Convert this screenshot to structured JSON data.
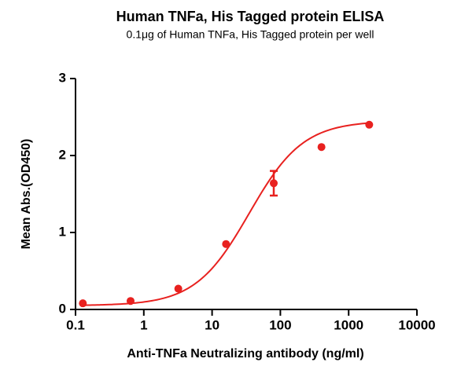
{
  "chart_data": {
    "type": "scatter",
    "title": "Human TNFa, His Tagged protein ELISA",
    "subtitle": "0.1μg of Human TNFa, His Tagged protein per well",
    "x_label": "Anti-TNFa Neutralizing antibody (ng/ml)",
    "y_label": "Mean Abs.(OD450)",
    "x_scale": "log",
    "xlim": [
      0.1,
      10000
    ],
    "xticks": [
      0.1,
      1,
      10,
      100,
      1000,
      10000
    ],
    "ylim": [
      0,
      3
    ],
    "yticks": [
      0,
      1,
      2,
      3
    ],
    "series": [
      {
        "color": "#e8211f",
        "x": [
          0.128,
          0.64,
          3.2,
          16,
          80,
          400,
          2000
        ],
        "values": [
          0.08,
          0.11,
          0.27,
          0.85,
          1.64,
          2.11,
          2.4
        ],
        "errors": [
          0,
          0,
          0,
          0,
          0.16,
          0,
          0
        ]
      }
    ],
    "fit": {
      "color": "#e8211f",
      "bottom": 0.05,
      "top": 2.45,
      "ec50": 35,
      "hill": 1.1
    }
  }
}
